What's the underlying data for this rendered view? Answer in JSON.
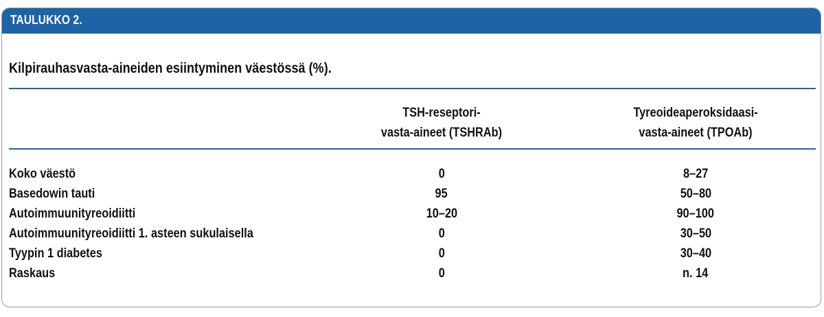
{
  "header": {
    "label": "TAULUKKO 2."
  },
  "title": "Kilpirauhasvasta-aineiden esiintyminen väestössä (%).",
  "columns": [
    {
      "line1": "TSH-reseptori-",
      "line2": "vasta-aineet (TSHRAb)"
    },
    {
      "line1": "Tyreoideaperoksidaasi-",
      "line2": "vasta-aineet (TPOAb)"
    }
  ],
  "rows": [
    {
      "label": "Koko väestö",
      "tshrab": "0",
      "tpoab": "8–27"
    },
    {
      "label": "Basedowin tauti",
      "tshrab": "95",
      "tpoab": "50–80"
    },
    {
      "label": "Autoimmuunityreoidiitti",
      "tshrab": "10–20",
      "tpoab": "90–100"
    },
    {
      "label": "Autoimmuunityreoidiitti 1. asteen sukulaisella",
      "tshrab": "0",
      "tpoab": "30–50"
    },
    {
      "label": "Tyypin 1 diabetes",
      "tshrab": "0",
      "tpoab": "30–40"
    },
    {
      "label": "Raskaus",
      "tshrab": "0",
      "tpoab": "n. 14"
    }
  ],
  "colors": {
    "accent": "#1d63a8",
    "border": "#9a9a9a",
    "text": "#111111"
  }
}
